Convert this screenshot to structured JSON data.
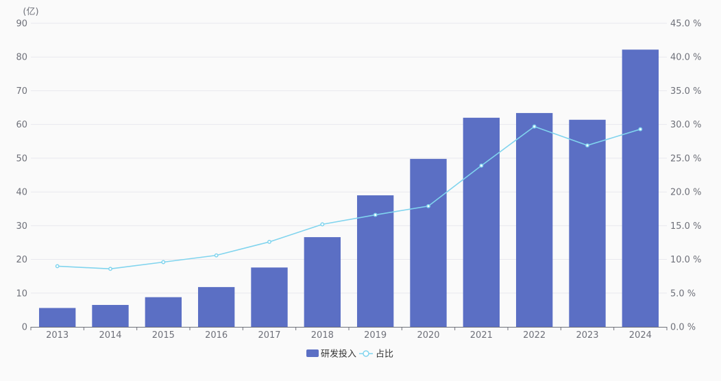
{
  "chart_data": {
    "type": "bar",
    "categories": [
      "2013",
      "2014",
      "2015",
      "2016",
      "2017",
      "2018",
      "2019",
      "2020",
      "2021",
      "2022",
      "2023",
      "2024"
    ],
    "series": [
      {
        "name": "研发投入",
        "type": "bar",
        "axis": "left",
        "color": "#5b6fc4",
        "values": [
          5.6,
          6.5,
          8.8,
          11.8,
          17.6,
          26.6,
          39.0,
          49.8,
          62.0,
          63.4,
          61.4,
          82.2
        ]
      },
      {
        "name": "占比",
        "type": "line",
        "axis": "right",
        "color": "#80d4ee",
        "values": [
          9.0,
          8.6,
          9.6,
          10.6,
          12.6,
          15.2,
          16.6,
          17.9,
          23.9,
          29.7,
          26.9,
          29.3
        ]
      }
    ],
    "y_left": {
      "unit_label": "(亿)",
      "min": 0,
      "max": 90,
      "interval": 10,
      "ticks": [
        "0",
        "10",
        "20",
        "30",
        "40",
        "50",
        "60",
        "70",
        "80",
        "90"
      ]
    },
    "y_right": {
      "min": 0,
      "max": 45,
      "interval": 5,
      "ticks": [
        "0.0 %",
        "5.0 %",
        "10.0 %",
        "15.0 %",
        "20.0 %",
        "25.0 %",
        "30.0 %",
        "35.0 %",
        "40.0 %",
        "45.0 %"
      ]
    },
    "grid": true,
    "legend_position": "bottom-center"
  }
}
